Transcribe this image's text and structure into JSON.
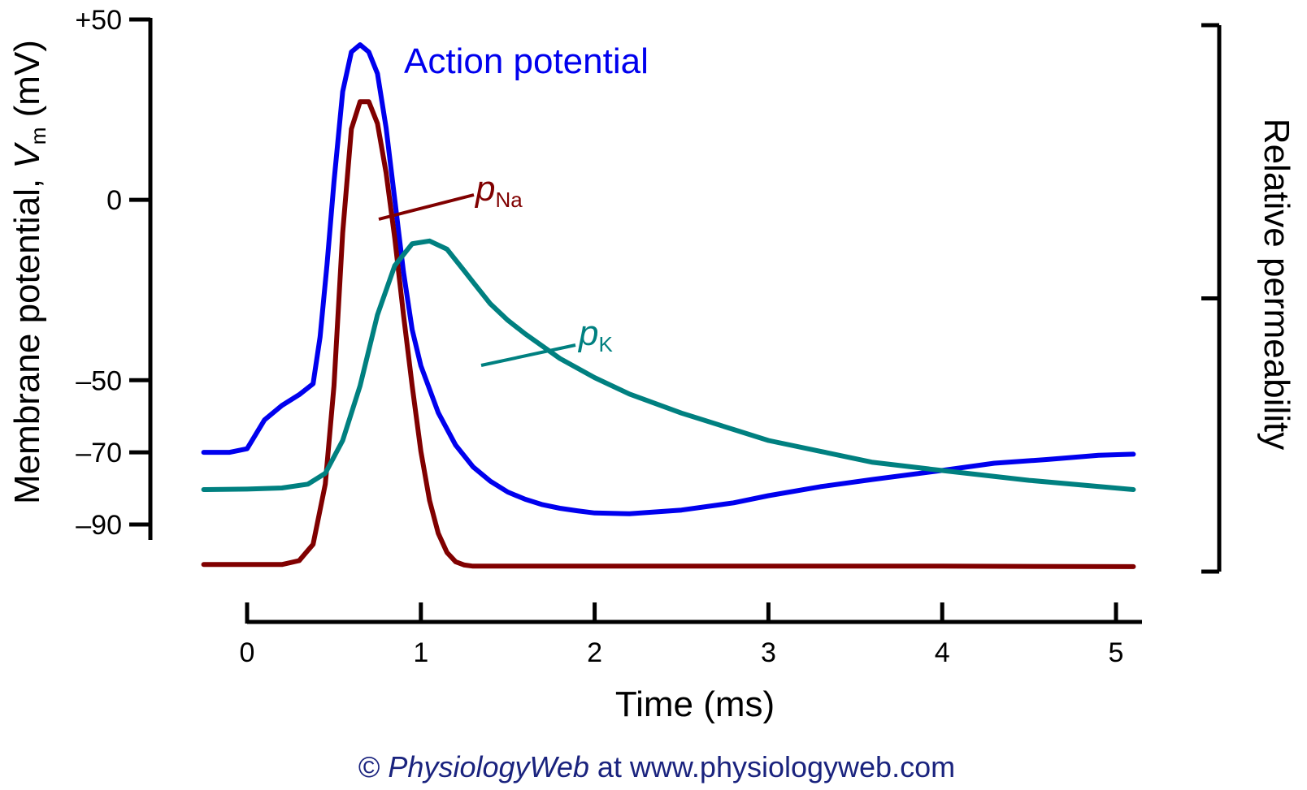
{
  "chart_data": {
    "type": "line",
    "x_axis": {
      "label": "Time (ms)",
      "range": [
        -0.25,
        5.1
      ],
      "ticks": [
        0,
        1,
        2,
        3,
        4,
        5
      ],
      "tick_labels": [
        "0",
        "1",
        "2",
        "3",
        "4",
        "5"
      ]
    },
    "y_axis_left": {
      "label_main": "Membrane potential, ",
      "label_var": "V",
      "label_sub": "m",
      "label_unit": " (mV)",
      "range": [
        -90,
        50
      ],
      "ticks": [
        50,
        0,
        -50,
        -70,
        -90
      ],
      "tick_labels": [
        "+50",
        "0",
        "–50",
        "–70",
        "–90"
      ]
    },
    "y_axis_right": {
      "label": "Relative permeability",
      "range": [
        0,
        1
      ],
      "ticks": [
        0,
        0.5,
        1
      ]
    },
    "series": [
      {
        "name": "Action potential",
        "axis": "left",
        "color": "#0000ee",
        "x": [
          -0.25,
          -0.1,
          0,
          0.05,
          0.1,
          0.2,
          0.3,
          0.38,
          0.42,
          0.46,
          0.5,
          0.55,
          0.6,
          0.65,
          0.7,
          0.75,
          0.8,
          0.85,
          0.9,
          0.95,
          1.0,
          1.1,
          1.2,
          1.3,
          1.4,
          1.5,
          1.6,
          1.7,
          1.8,
          1.9,
          2.0,
          2.2,
          2.5,
          2.8,
          3.0,
          3.3,
          3.6,
          4.0,
          4.3,
          4.6,
          4.9,
          5.1
        ],
        "y": [
          -70,
          -70,
          -69,
          -65,
          -61,
          -57,
          -54,
          -51,
          -38,
          -18,
          5,
          30,
          41,
          43,
          41,
          35,
          20,
          0,
          -20,
          -36,
          -46,
          -59,
          -68,
          -74,
          -78,
          -81,
          -83,
          -84.5,
          -85.5,
          -86.2,
          -86.8,
          -87,
          -86,
          -84,
          -82,
          -79.5,
          -77.5,
          -75,
          -73,
          -72,
          -70.8,
          -70.5
        ]
      },
      {
        "name": "pNa",
        "name_var": "p",
        "name_sub": "Na",
        "axis": "right",
        "color": "#800000",
        "x": [
          -0.25,
          0,
          0.2,
          0.3,
          0.38,
          0.45,
          0.5,
          0.55,
          0.6,
          0.65,
          0.7,
          0.75,
          0.8,
          0.85,
          0.9,
          0.95,
          1.0,
          1.05,
          1.1,
          1.15,
          1.2,
          1.25,
          1.3,
          1.5,
          2.0,
          3.0,
          4.0,
          5.1
        ],
        "y": [
          0.013,
          0.013,
          0.013,
          0.02,
          0.05,
          0.16,
          0.34,
          0.62,
          0.81,
          0.86,
          0.86,
          0.82,
          0.73,
          0.61,
          0.47,
          0.34,
          0.22,
          0.13,
          0.07,
          0.035,
          0.018,
          0.012,
          0.01,
          0.01,
          0.01,
          0.01,
          0.01,
          0.009
        ]
      },
      {
        "name": "pK",
        "name_var": "p",
        "name_sub": "K",
        "axis": "right",
        "color": "#008080",
        "x": [
          -0.25,
          0,
          0.2,
          0.35,
          0.45,
          0.55,
          0.65,
          0.75,
          0.85,
          0.95,
          1.05,
          1.15,
          1.25,
          1.3,
          1.4,
          1.5,
          1.6,
          1.8,
          2.0,
          2.2,
          2.5,
          2.8,
          3.0,
          3.3,
          3.6,
          4.0,
          4.5,
          5.1
        ],
        "y": [
          0.15,
          0.151,
          0.153,
          0.16,
          0.18,
          0.24,
          0.34,
          0.47,
          0.56,
          0.6,
          0.605,
          0.59,
          0.55,
          0.53,
          0.49,
          0.46,
          0.435,
          0.39,
          0.355,
          0.325,
          0.29,
          0.26,
          0.24,
          0.22,
          0.2,
          0.185,
          0.167,
          0.15
        ]
      }
    ],
    "annotations": {
      "action_potential_label": "Action potential"
    },
    "grid": false,
    "legend": "inline labels"
  },
  "credit": {
    "prefix": "© ",
    "site_name": "PhysiologyWeb",
    "suffix": " at www.physiologyweb.com"
  }
}
